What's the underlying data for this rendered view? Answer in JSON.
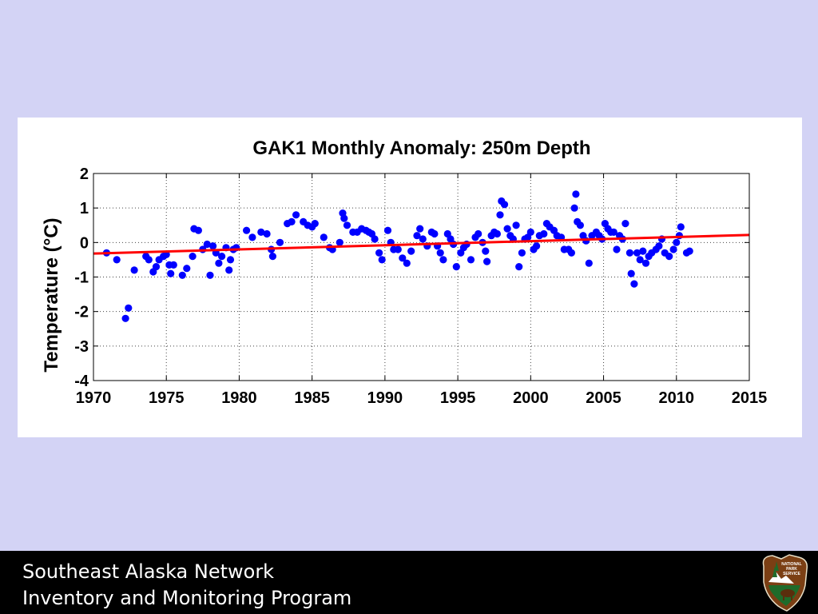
{
  "slide": {
    "footer_line_1": "Southeast Alaska Network",
    "footer_line_2": "Inventory and Monitoring Program",
    "logo_text": [
      "NATIONAL",
      "PARK",
      "SERVICE"
    ]
  },
  "colors": {
    "background": "#d3d3f5",
    "points": "#0000ff",
    "trend": "#ff0000",
    "footer": "#000000"
  },
  "chart_data": {
    "type": "scatter",
    "title": "GAK1 Monthly Anomaly: 250m Depth",
    "xlabel": "",
    "ylabel": "Temperature (°C)",
    "xlim": [
      1970,
      2015
    ],
    "ylim": [
      -4,
      2
    ],
    "xticks": [
      1970,
      1975,
      1980,
      1985,
      1990,
      1995,
      2000,
      2005,
      2010,
      2015
    ],
    "yticks": [
      2,
      1,
      0,
      -1,
      -2,
      -3,
      -4
    ],
    "grid": true,
    "series": [
      {
        "type": "scatter",
        "points": [
          [
            1970.9,
            -0.3
          ],
          [
            1971.6,
            -0.5
          ],
          [
            1972.2,
            -2.2
          ],
          [
            1972.4,
            -1.9
          ],
          [
            1972.8,
            -0.8
          ],
          [
            1973.6,
            -0.4
          ],
          [
            1973.8,
            -0.5
          ],
          [
            1974.1,
            -0.85
          ],
          [
            1974.3,
            -0.7
          ],
          [
            1974.5,
            -0.5
          ],
          [
            1974.8,
            -0.4
          ],
          [
            1975.0,
            -0.35
          ],
          [
            1975.2,
            -0.65
          ],
          [
            1975.3,
            -0.9
          ],
          [
            1975.5,
            -0.65
          ],
          [
            1976.1,
            -0.95
          ],
          [
            1976.4,
            -0.75
          ],
          [
            1976.8,
            -0.4
          ],
          [
            1976.9,
            0.4
          ],
          [
            1977.2,
            0.35
          ],
          [
            1977.5,
            -0.2
          ],
          [
            1977.8,
            -0.05
          ],
          [
            1978.0,
            -0.95
          ],
          [
            1978.2,
            -0.1
          ],
          [
            1978.4,
            -0.3
          ],
          [
            1978.6,
            -0.6
          ],
          [
            1978.8,
            -0.4
          ],
          [
            1979.1,
            -0.15
          ],
          [
            1979.3,
            -0.8
          ],
          [
            1979.4,
            -0.5
          ],
          [
            1979.6,
            -0.2
          ],
          [
            1979.8,
            -0.15
          ],
          [
            1980.5,
            0.35
          ],
          [
            1980.9,
            0.15
          ],
          [
            1981.5,
            0.3
          ],
          [
            1981.9,
            0.25
          ],
          [
            1982.2,
            -0.2
          ],
          [
            1982.3,
            -0.4
          ],
          [
            1982.8,
            0.0
          ],
          [
            1983.3,
            0.55
          ],
          [
            1983.6,
            0.6
          ],
          [
            1983.9,
            0.8
          ],
          [
            1984.4,
            0.6
          ],
          [
            1984.7,
            0.5
          ],
          [
            1985.0,
            0.45
          ],
          [
            1985.2,
            0.55
          ],
          [
            1985.8,
            0.15
          ],
          [
            1986.2,
            -0.15
          ],
          [
            1986.4,
            -0.2
          ],
          [
            1986.9,
            0.0
          ],
          [
            1987.1,
            0.85
          ],
          [
            1987.2,
            0.7
          ],
          [
            1987.4,
            0.5
          ],
          [
            1987.8,
            0.3
          ],
          [
            1988.1,
            0.3
          ],
          [
            1988.4,
            0.4
          ],
          [
            1988.7,
            0.35
          ],
          [
            1988.9,
            0.3
          ],
          [
            1989.1,
            0.25
          ],
          [
            1989.3,
            0.1
          ],
          [
            1989.6,
            -0.3
          ],
          [
            1989.8,
            -0.5
          ],
          [
            1990.2,
            0.35
          ],
          [
            1990.4,
            0.0
          ],
          [
            1990.6,
            -0.2
          ],
          [
            1990.9,
            -0.2
          ],
          [
            1991.2,
            -0.45
          ],
          [
            1991.5,
            -0.6
          ],
          [
            1991.8,
            -0.25
          ],
          [
            1992.2,
            0.2
          ],
          [
            1992.4,
            0.4
          ],
          [
            1992.6,
            0.1
          ],
          [
            1992.9,
            -0.1
          ],
          [
            1993.2,
            0.3
          ],
          [
            1993.4,
            0.25
          ],
          [
            1993.6,
            -0.1
          ],
          [
            1993.8,
            -0.3
          ],
          [
            1994.0,
            -0.5
          ],
          [
            1994.3,
            0.25
          ],
          [
            1994.5,
            0.1
          ],
          [
            1994.7,
            -0.05
          ],
          [
            1994.9,
            -0.7
          ],
          [
            1995.2,
            -0.3
          ],
          [
            1995.4,
            -0.15
          ],
          [
            1995.6,
            -0.05
          ],
          [
            1995.9,
            -0.5
          ],
          [
            1996.2,
            0.15
          ],
          [
            1996.4,
            0.25
          ],
          [
            1996.7,
            0.0
          ],
          [
            1996.9,
            -0.25
          ],
          [
            1997.0,
            -0.55
          ],
          [
            1997.3,
            0.2
          ],
          [
            1997.5,
            0.3
          ],
          [
            1997.7,
            0.25
          ],
          [
            1997.9,
            0.8
          ],
          [
            1998.0,
            1.2
          ],
          [
            1998.2,
            1.1
          ],
          [
            1998.4,
            0.4
          ],
          [
            1998.6,
            0.2
          ],
          [
            1998.8,
            0.1
          ],
          [
            1999.0,
            0.5
          ],
          [
            1999.2,
            -0.7
          ],
          [
            1999.4,
            -0.3
          ],
          [
            1999.6,
            0.1
          ],
          [
            1999.8,
            0.15
          ],
          [
            2000.0,
            0.3
          ],
          [
            2000.2,
            -0.2
          ],
          [
            2000.4,
            -0.1
          ],
          [
            2000.6,
            0.2
          ],
          [
            2000.9,
            0.25
          ],
          [
            2001.1,
            0.55
          ],
          [
            2001.3,
            0.45
          ],
          [
            2001.6,
            0.35
          ],
          [
            2001.8,
            0.2
          ],
          [
            2002.1,
            0.15
          ],
          [
            2002.3,
            -0.2
          ],
          [
            2002.6,
            -0.2
          ],
          [
            2002.8,
            -0.3
          ],
          [
            2003.0,
            1.0
          ],
          [
            2003.1,
            1.4
          ],
          [
            2003.2,
            0.6
          ],
          [
            2003.4,
            0.5
          ],
          [
            2003.6,
            0.2
          ],
          [
            2003.8,
            0.05
          ],
          [
            2004.0,
            -0.6
          ],
          [
            2004.2,
            0.2
          ],
          [
            2004.5,
            0.3
          ],
          [
            2004.7,
            0.2
          ],
          [
            2004.9,
            0.1
          ],
          [
            2005.1,
            0.55
          ],
          [
            2005.3,
            0.4
          ],
          [
            2005.5,
            0.3
          ],
          [
            2005.7,
            0.3
          ],
          [
            2005.9,
            -0.2
          ],
          [
            2006.1,
            0.2
          ],
          [
            2006.3,
            0.1
          ],
          [
            2006.5,
            0.55
          ],
          [
            2006.8,
            -0.3
          ],
          [
            2006.9,
            -0.9
          ],
          [
            2007.1,
            -1.2
          ],
          [
            2007.3,
            -0.3
          ],
          [
            2007.5,
            -0.5
          ],
          [
            2007.7,
            -0.25
          ],
          [
            2007.9,
            -0.6
          ],
          [
            2008.1,
            -0.4
          ],
          [
            2008.3,
            -0.3
          ],
          [
            2008.6,
            -0.2
          ],
          [
            2008.8,
            -0.1
          ],
          [
            2009.0,
            0.1
          ],
          [
            2009.2,
            -0.3
          ],
          [
            2009.5,
            -0.4
          ],
          [
            2009.8,
            -0.2
          ],
          [
            2010.0,
            0.0
          ],
          [
            2010.2,
            0.2
          ],
          [
            2010.3,
            0.45
          ],
          [
            2010.7,
            -0.3
          ],
          [
            2010.9,
            -0.25
          ]
        ]
      },
      {
        "type": "line",
        "x": [
          1970,
          2015
        ],
        "y": [
          -0.32,
          0.22
        ]
      }
    ]
  }
}
